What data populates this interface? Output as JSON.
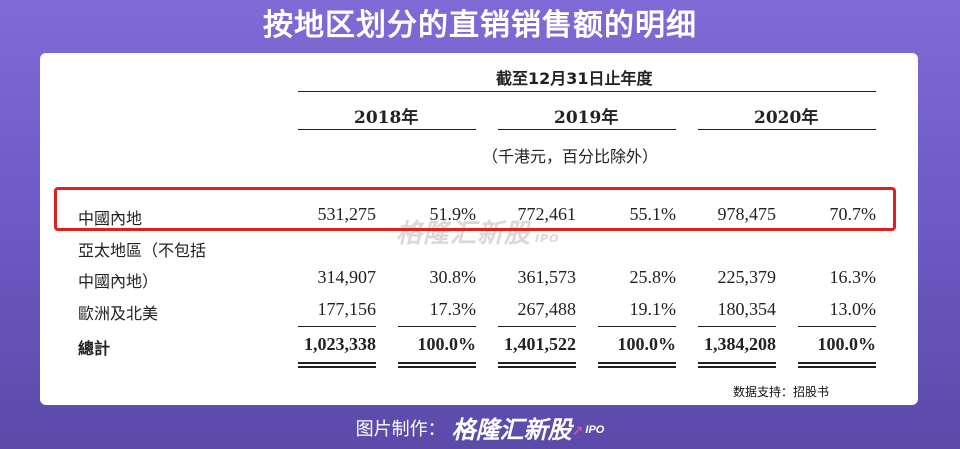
{
  "title": "按地区划分的直销销售额的明细",
  "table": {
    "period_header": "截至12月31日止年度",
    "years": [
      "2018年",
      "2019年",
      "2020年"
    ],
    "unit_note": "（千港元，百分比除外）",
    "rows": [
      {
        "label": "中國內地",
        "values": [
          "531,275",
          "51.9%",
          "772,461",
          "55.1%",
          "978,475",
          "70.7%"
        ]
      },
      {
        "label": "亞太地區（不包括",
        "values": [
          "",
          "",
          "",
          "",
          "",
          ""
        ]
      },
      {
        "label": "中國內地）",
        "values": [
          "314,907",
          "30.8%",
          "361,573",
          "25.8%",
          "225,379",
          "16.3%"
        ]
      },
      {
        "label": "歐洲及北美",
        "values": [
          "177,156",
          "17.3%",
          "267,488",
          "19.1%",
          "180,354",
          "13.0%"
        ]
      }
    ],
    "total": {
      "label": "總計",
      "values": [
        "1,023,338",
        "100.0%",
        "1,401,522",
        "100.0%",
        "1,384,208",
        "100.0%"
      ]
    }
  },
  "watermark": {
    "brand": "格隆汇新股",
    "suffix": "IPO"
  },
  "source": "数据支持：招股书",
  "footer": {
    "label": "图片制作：",
    "brand": "格隆汇新股",
    "suffix": "IPO"
  },
  "colors": {
    "highlight": "#e01e1e",
    "background": "#6f5bc7",
    "accent": "#ff4fa0"
  }
}
